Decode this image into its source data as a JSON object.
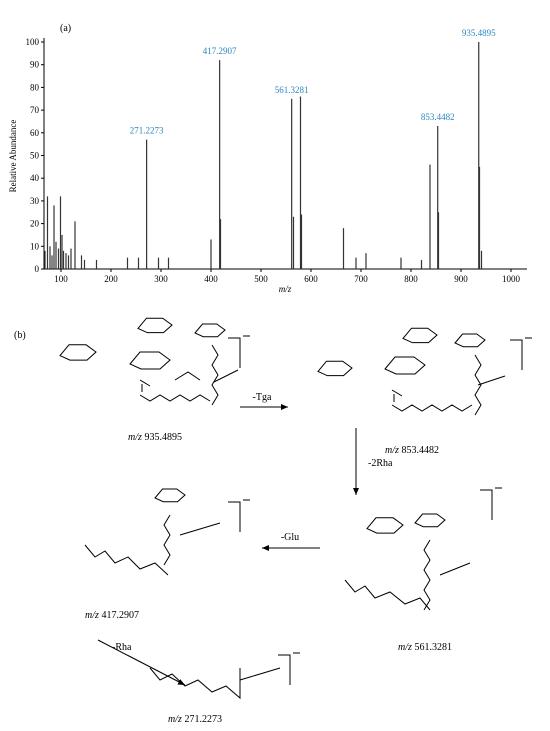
{
  "chart_data": {
    "type": "stem",
    "panel_label": "(a)",
    "y_label": "Relative Abundance",
    "x_label": "m/z",
    "xlim": [
      66,
      1032
    ],
    "ylim": [
      0,
      100
    ],
    "xticks": [
      100,
      200,
      300,
      400,
      500,
      600,
      700,
      800,
      900,
      1000
    ],
    "yticks": [
      0,
      10,
      20,
      30,
      40,
      50,
      60,
      70,
      80,
      90,
      100
    ],
    "color": "#333333",
    "label_color": "#2e86c1",
    "x": [
      68,
      73,
      78,
      82,
      86,
      90,
      95,
      99,
      102,
      105,
      110,
      115,
      120,
      128,
      141,
      147,
      171,
      233,
      255,
      295,
      315,
      400,
      419,
      565,
      579,
      581,
      665,
      690,
      710,
      780,
      821,
      838,
      855,
      937,
      941
    ],
    "values": [
      8,
      32,
      10,
      6,
      28,
      12,
      9,
      32,
      15,
      8,
      7,
      6,
      9,
      21,
      6,
      4,
      4,
      5,
      5,
      5,
      5,
      13,
      22,
      23,
      76,
      24,
      18,
      5,
      7,
      5,
      4,
      46,
      25,
      45,
      8
    ],
    "labeled_peaks": {
      "x": [
        271.2273,
        417.2907,
        561.3281,
        853.4482,
        935.4895
      ],
      "values": [
        57,
        92,
        75,
        63,
        100
      ]
    }
  },
  "scheme": {
    "panel_label": "(b)",
    "compounds": [
      {
        "prefix": "m/z",
        "mass": "935.4895"
      },
      {
        "prefix": "m/z",
        "mass": "853.4482"
      },
      {
        "prefix": "m/z",
        "mass": "561.3281"
      },
      {
        "prefix": "m/z",
        "mass": "417.2907"
      },
      {
        "prefix": "m/z",
        "mass": "271.2273"
      }
    ],
    "steps": [
      "-Tga",
      "-2Rha",
      "-Glu",
      "-Rha"
    ]
  }
}
